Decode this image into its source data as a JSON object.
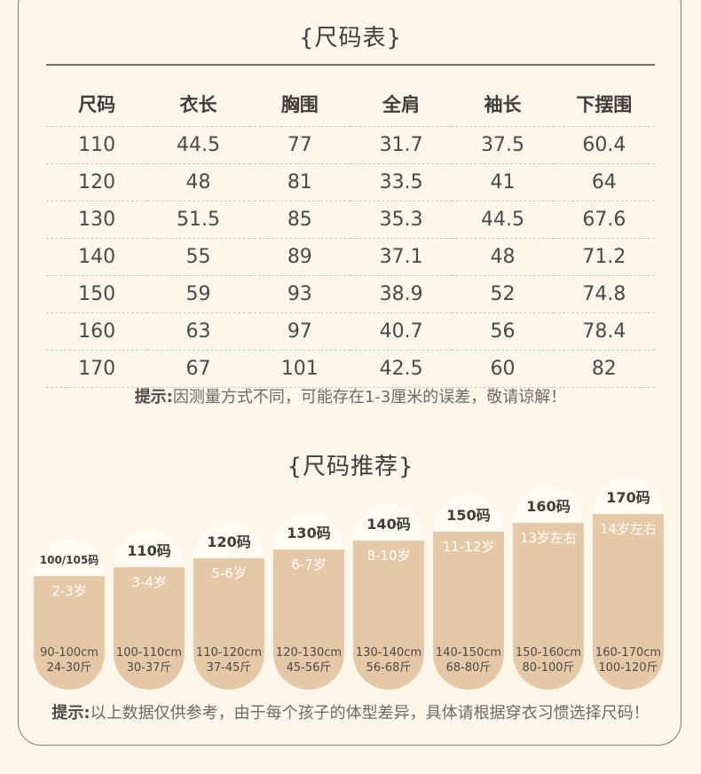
{
  "size_chart": {
    "title": "{尺码表}",
    "headers": [
      "尺码",
      "衣长",
      "胸围",
      "全肩",
      "袖长",
      "下摆围"
    ],
    "rows": [
      [
        "110",
        "44.5",
        "77",
        "31.7",
        "37.5",
        "60.4"
      ],
      [
        "120",
        "48",
        "81",
        "33.5",
        "41",
        "64"
      ],
      [
        "130",
        "51.5",
        "85",
        "35.3",
        "44.5",
        "67.6"
      ],
      [
        "140",
        "55",
        "89",
        "37.1",
        "48",
        "71.2"
      ],
      [
        "150",
        "59",
        "93",
        "38.9",
        "52",
        "74.8"
      ],
      [
        "160",
        "63",
        "97",
        "40.7",
        "56",
        "78.4"
      ],
      [
        "170",
        "67",
        "101",
        "42.5",
        "60",
        "82"
      ]
    ],
    "note_label": "提示:",
    "note_text": "因测量方式不同，可能存在1-3厘米的误差，敬请谅解！"
  },
  "recommend": {
    "title": "{尺码推荐}",
    "cards": [
      {
        "size": "100/105码",
        "age": "2-3岁",
        "height": "90-100cm",
        "weight": "24-30斤"
      },
      {
        "size": "110码",
        "age": "3-4岁",
        "height": "100-110cm",
        "weight": "30-37斤"
      },
      {
        "size": "120码",
        "age": "5-6岁",
        "height": "110-120cm",
        "weight": "37-45斤"
      },
      {
        "size": "130码",
        "age": "6-7岁",
        "height": "120-130cm",
        "weight": "45-56斤"
      },
      {
        "size": "140码",
        "age": "8-10岁",
        "height": "130-140cm",
        "weight": "56-68斤"
      },
      {
        "size": "150码",
        "age": "11-12岁",
        "height": "140-150cm",
        "weight": "68-80斤"
      },
      {
        "size": "160码",
        "age": "13岁左右",
        "height": "150-160cm",
        "weight": "80-100斤"
      },
      {
        "size": "170码",
        "age": "14岁左右",
        "height": "160-170cm",
        "weight": "100-120斤"
      }
    ],
    "note_label": "提示:",
    "note_text": "以上数据仅供参考，由于每个孩子的体型差异，具体请根据穿衣习惯选择尺码！"
  },
  "colors": {
    "background": "#fdf6ea",
    "card": "#e5c9a6",
    "card_cap": "#fffaf2",
    "rule": "#7b6e62"
  }
}
